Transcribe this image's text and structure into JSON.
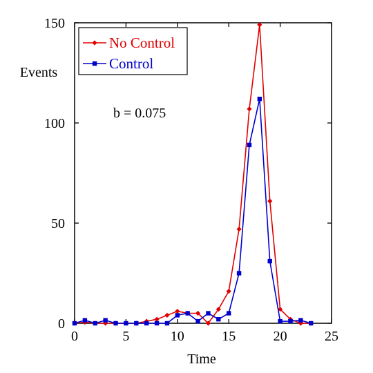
{
  "chart_data": {
    "type": "line",
    "title": "",
    "xlabel": "Time",
    "ylabel": "Events",
    "xlim": [
      0,
      25
    ],
    "ylim": [
      0,
      150
    ],
    "xticks": [
      0,
      5,
      10,
      15,
      20,
      25
    ],
    "yticks": [
      0,
      50,
      100,
      150
    ],
    "grid": false,
    "legend_position": "top-left",
    "annotation": "b = 0.075",
    "series": [
      {
        "name": "No Control",
        "color": "#e00000",
        "marker": "diamond",
        "x": [
          0,
          1,
          2,
          3,
          4,
          5,
          6,
          7,
          8,
          9,
          10,
          11,
          12,
          13,
          14,
          15,
          16,
          17,
          18,
          19,
          20,
          21,
          22,
          23
        ],
        "y": [
          0,
          0.5,
          0,
          0,
          0,
          0,
          0,
          1,
          2,
          4,
          6,
          5,
          5,
          0,
          7,
          16,
          47,
          107,
          149,
          61,
          7,
          2,
          0,
          0
        ]
      },
      {
        "name": "Control",
        "color": "#0000cc",
        "marker": "square",
        "x": [
          0,
          1,
          2,
          3,
          4,
          5,
          6,
          7,
          8,
          9,
          10,
          11,
          12,
          13,
          14,
          15,
          16,
          17,
          18,
          19,
          20,
          21,
          22,
          23
        ],
        "y": [
          0,
          1.5,
          0,
          1.5,
          0,
          0,
          0,
          0,
          0,
          0,
          4,
          5,
          1,
          5,
          2,
          5,
          25,
          89,
          112,
          31,
          1,
          1,
          1.5,
          0
        ]
      }
    ]
  }
}
